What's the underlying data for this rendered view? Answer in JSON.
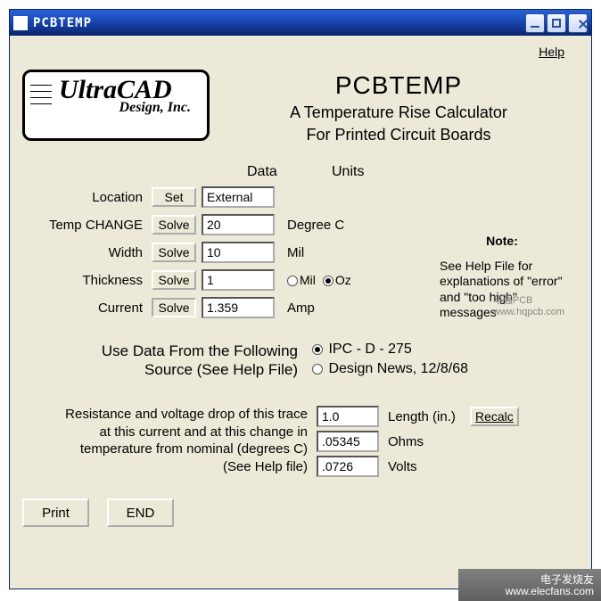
{
  "window": {
    "title": "PCBTEMP"
  },
  "menu": {
    "help": "Help"
  },
  "logo": {
    "line1": "UltraCAD",
    "line2": "Design, Inc."
  },
  "title": {
    "main": "PCBTEMP",
    "sub1": "A Temperature Rise Calculator",
    "sub2": "For Printed Circuit Boards"
  },
  "columns": {
    "data": "Data",
    "units": "Units"
  },
  "rows": [
    {
      "label": "Location",
      "button": "Set",
      "value": "External",
      "unit": ""
    },
    {
      "label": "Temp CHANGE",
      "button": "Solve",
      "value": "20",
      "unit": "Degree  C"
    },
    {
      "label": "Width",
      "button": "Solve",
      "value": "10",
      "unit": "Mil"
    },
    {
      "label": "Thickness",
      "button": "Solve",
      "value": "1",
      "unit_radio": {
        "opt1": "Mil",
        "opt2": "Oz",
        "selected": 1
      }
    },
    {
      "label": "Current",
      "button": "Solve",
      "value": "1.359",
      "unit": "Amp"
    }
  ],
  "note": {
    "title": "Note:",
    "body": "See Help File for explanations of \"error\" and \"too high\" messages"
  },
  "source": {
    "text1": "Use Data From the Following",
    "text2": "Source (See Help File)",
    "opt1": "IPC - D - 275",
    "opt2": "Design News, 12/8/68",
    "selected": 0
  },
  "rv": {
    "line1": "Resistance and voltage drop of this trace",
    "line2": "at this current and at this change in",
    "line3": "temperature from nominal (degrees C)",
    "line4": "(See Help file)",
    "length": {
      "value": "1.0",
      "label": "Length (in.)"
    },
    "ohms": {
      "value": ".05345",
      "label": "Ohms"
    },
    "volts": {
      "value": ".0726",
      "label": "Volts"
    },
    "recalc": "Recalc"
  },
  "buttons": {
    "print": "Print",
    "end": "END"
  },
  "watermark": {
    "brand1": "电子发烧友",
    "url1": "www.elecfans.com",
    "brand2": "华强PCB",
    "url2": "www.hqpcb.com"
  },
  "style": {
    "title_color": "#ffffff",
    "titlebar_gradient": [
      "#2a63d6",
      "#0a246a"
    ],
    "client_bg": "#ece9d8",
    "font_main": "Arial",
    "font_logo": "Times New Roman",
    "title_fontsize": 28,
    "subtitle_fontsize": 18,
    "row_fontsize": 15,
    "input_bg": "#ffffff",
    "border_inset": "#aaaaaa"
  }
}
